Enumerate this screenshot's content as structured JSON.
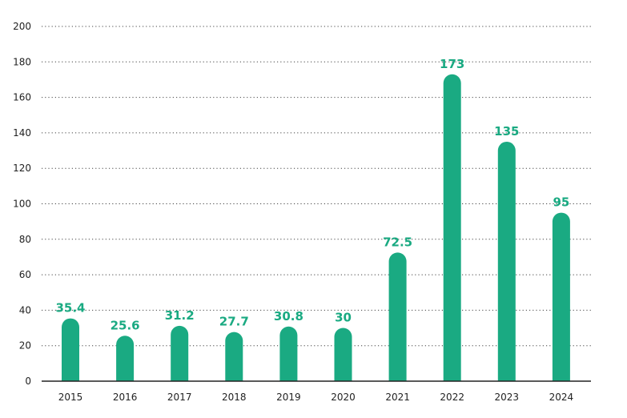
{
  "chart_data": {
    "type": "bar",
    "title": "",
    "xlabel": "",
    "ylabel": "",
    "categories": [
      "2015",
      "2016",
      "2017",
      "2018",
      "2019",
      "2020",
      "2021",
      "2022",
      "2023",
      "2024"
    ],
    "values": [
      35.4,
      25.6,
      31.2,
      27.7,
      30.8,
      30,
      72.5,
      173,
      135,
      95
    ],
    "value_labels": [
      "35.4",
      "25.6",
      "31.2",
      "27.7",
      "30.8",
      "30",
      "72.5",
      "173",
      "135",
      "95"
    ],
    "ylim": [
      0,
      200
    ],
    "yticks": [
      0,
      20,
      40,
      60,
      80,
      100,
      120,
      140,
      160,
      180,
      200
    ],
    "grid": true,
    "grid_style": "dotted-horizontal",
    "legend": false,
    "bar_style": "rounded-top",
    "colors": {
      "bar": "#1aaa82",
      "label": "#1aaa82",
      "grid": "#444444",
      "axis": "#222222",
      "text": "#222222"
    }
  }
}
